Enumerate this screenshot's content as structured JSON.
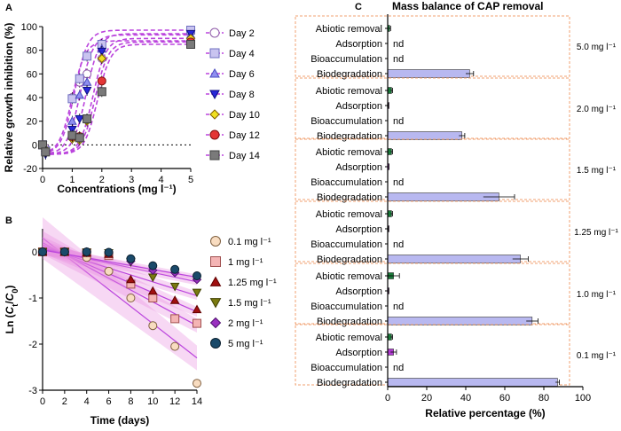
{
  "chart_data": [
    {
      "id": "A",
      "panel_label": "A",
      "type": "scatter",
      "xlabel": "Concentrations (mg l⁻¹)",
      "ylabel": "Relative growth inhibition (%)",
      "xlim": [
        0,
        5
      ],
      "ylim": [
        -20,
        100
      ],
      "xticks": [
        0,
        1,
        2,
        3,
        4,
        5
      ],
      "yticks": [
        -20,
        0,
        20,
        40,
        60,
        80,
        100
      ],
      "x": [
        0,
        0.1,
        1,
        1.25,
        1.5,
        2,
        5
      ],
      "reference_line": 0,
      "series": [
        {
          "name": "Day 2",
          "marker": "circle",
          "fill": "#ffffff",
          "stroke": "#8e5aa8",
          "values": [
            0,
            -3,
            40,
            53,
            60,
            73,
            88
          ]
        },
        {
          "name": "Day 4",
          "marker": "square",
          "fill": "#c9c4f0",
          "stroke": "#6f6fc0",
          "values": [
            0,
            -5,
            39,
            56,
            75,
            85,
            97
          ]
        },
        {
          "name": "Day 6",
          "marker": "triangle",
          "fill": "#8f8ff0",
          "stroke": "#4a4ac0",
          "values": [
            0,
            -5,
            20,
            42,
            53,
            81,
            93
          ]
        },
        {
          "name": "Day 8",
          "marker": "invtriangle",
          "fill": "#2727d8",
          "stroke": "#101080",
          "values": [
            0,
            -8,
            13,
            22,
            46,
            79,
            94
          ]
        },
        {
          "name": "Day 10",
          "marker": "diamond",
          "fill": "#f0e020",
          "stroke": "#806000",
          "values": [
            0,
            -4,
            5,
            4,
            20,
            73,
            90
          ]
        },
        {
          "name": "Day 12",
          "marker": "circle",
          "fill": "#e43636",
          "stroke": "#801010",
          "values": [
            0,
            -6,
            7,
            7,
            22,
            54,
            87
          ]
        },
        {
          "name": "Day 14",
          "marker": "square",
          "fill": "#7a7a7a",
          "stroke": "#404040",
          "values": [
            0,
            -6,
            8,
            6,
            22,
            45,
            85
          ]
        }
      ]
    },
    {
      "id": "B",
      "panel_label": "B",
      "type": "line",
      "xlabel": "Time (days)",
      "ylabel": "Ln (Ct/C0)",
      "ylabel_parts": [
        "Ln (",
        "C",
        "t",
        "/",
        "C",
        "0",
        ")"
      ],
      "xlim": [
        0,
        14
      ],
      "ylim": [
        -3,
        0.5
      ],
      "xticks": [
        0,
        2,
        4,
        6,
        8,
        10,
        12,
        14
      ],
      "yticks": [
        -3,
        -2,
        -1,
        0
      ],
      "x": [
        0,
        2,
        4,
        6,
        8,
        10,
        12,
        14
      ],
      "series": [
        {
          "name": "0.1 mg l⁻¹",
          "marker": "circle",
          "fill": "#f8dcc0",
          "stroke": "#806040",
          "values": [
            0,
            0,
            -0.12,
            -0.42,
            -1.0,
            -1.6,
            -2.05,
            -2.85
          ],
          "fit": [
            0.3,
            -2.3
          ]
        },
        {
          "name": "1 mg l⁻¹",
          "marker": "square",
          "fill": "#f4b4b4",
          "stroke": "#a05050",
          "values": [
            0,
            0,
            -0.02,
            -0.08,
            -0.7,
            -1.0,
            -1.45,
            -1.55
          ],
          "fit": [
            0.2,
            -1.6
          ]
        },
        {
          "name": "1.25 mg l⁻¹",
          "marker": "triangle",
          "fill": "#a01010",
          "stroke": "#600000",
          "values": [
            0,
            0,
            -0.02,
            -0.05,
            -0.6,
            -0.85,
            -1.05,
            -1.25
          ],
          "fit": [
            0.15,
            -1.3
          ]
        },
        {
          "name": "1.5 mg l⁻¹",
          "marker": "invtriangle",
          "fill": "#7a7a10",
          "stroke": "#404000",
          "values": [
            0,
            0,
            -0.01,
            -0.02,
            -0.22,
            -0.55,
            -0.75,
            -0.88
          ],
          "fit": [
            0.1,
            -0.95
          ]
        },
        {
          "name": "2 mg l⁻¹",
          "marker": "diamond",
          "fill": "#9a30c0",
          "stroke": "#501070",
          "values": [
            0,
            0,
            0,
            -0.02,
            -0.2,
            -0.4,
            -0.45,
            -0.6
          ],
          "fit": [
            0.06,
            -0.65
          ]
        },
        {
          "name": "5 mg l⁻¹",
          "marker": "circle",
          "fill": "#1a4a6a",
          "stroke": "#0a2030",
          "values": [
            0,
            0,
            0,
            -0.01,
            -0.15,
            -0.3,
            -0.38,
            -0.52
          ],
          "fit": [
            0.04,
            -0.55
          ]
        }
      ]
    },
    {
      "id": "C",
      "panel_label": "C",
      "type": "bar",
      "orientation": "horizontal",
      "title": "Mass balance of CAP removal",
      "xlabel": "Relative percentage (%)",
      "xlim": [
        0,
        100
      ],
      "xticks": [
        0,
        20,
        40,
        60,
        80,
        100
      ],
      "categories": [
        "Abiotic removal",
        "Adsorption",
        "Bioaccumulation",
        "Biodegradation"
      ],
      "na_label": "nd",
      "colors": {
        "Abiotic removal": "#1a7a3a",
        "Adsorption": "#b03ad0",
        "Biodegradation": "#b8b8f0"
      },
      "groups": [
        {
          "name": "5.0 mg l⁻¹",
          "values": [
            1,
            null,
            null,
            42
          ],
          "errors": [
            0.5,
            null,
            null,
            2
          ]
        },
        {
          "name": "2.0 mg l⁻¹",
          "values": [
            2,
            0.3,
            null,
            38
          ],
          "errors": [
            0.5,
            0.1,
            null,
            1.5
          ]
        },
        {
          "name": "1.5 mg l⁻¹",
          "values": [
            2,
            0.5,
            null,
            57
          ],
          "errors": [
            0.5,
            0.1,
            null,
            8
          ]
        },
        {
          "name": "1.25 mg l⁻¹",
          "values": [
            2,
            0.3,
            null,
            68
          ],
          "errors": [
            0.5,
            0.1,
            null,
            4
          ]
        },
        {
          "name": "1.0 mg l⁻¹",
          "values": [
            3,
            0.4,
            null,
            74
          ],
          "errors": [
            3,
            0.1,
            null,
            3
          ]
        },
        {
          "name": "0.1 mg l⁻¹",
          "values": [
            2,
            3,
            null,
            87
          ],
          "errors": [
            0.5,
            1.5,
            null,
            1
          ]
        }
      ]
    }
  ],
  "theme": {
    "fit_line": "#bb44dd",
    "band": "#e88ee0",
    "group_border": "#f0a070",
    "reference_line": "#000000"
  }
}
